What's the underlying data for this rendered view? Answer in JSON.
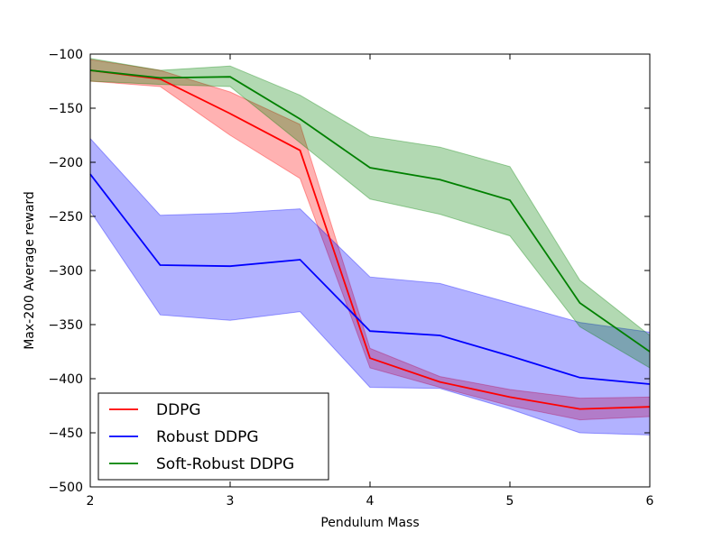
{
  "chart_data": {
    "type": "line",
    "title": "",
    "xlabel": "Pendulum Mass",
    "ylabel": "Max-200 Average reward",
    "xlim": [
      2,
      6
    ],
    "ylim": [
      -500,
      -100
    ],
    "xticks": [
      2,
      3,
      4,
      5,
      6
    ],
    "yticks": [
      -500,
      -450,
      -400,
      -350,
      -300,
      -250,
      -200,
      -150,
      -100
    ],
    "grid": false,
    "legend_position": "lower-left",
    "x": [
      2,
      2.5,
      3,
      3.5,
      4,
      4.5,
      5,
      5.5,
      6
    ],
    "series": [
      {
        "name": "DDPG",
        "color": "#ff0000",
        "values": [
          -115,
          -123,
          -155,
          -189,
          -381,
          -403,
          -417,
          -428,
          -426
        ],
        "lower": [
          -125,
          -130,
          -175,
          -215,
          -390,
          -408,
          -425,
          -438,
          -435
        ],
        "upper": [
          -105,
          -115,
          -135,
          -165,
          -372,
          -398,
          -410,
          -418,
          -417
        ]
      },
      {
        "name": "Robust DDPG",
        "color": "#0000ff",
        "values": [
          -211,
          -295,
          -296,
          -290,
          -356,
          -360,
          -379,
          -399,
          -405
        ],
        "lower": [
          -245,
          -341,
          -346,
          -338,
          -408,
          -409,
          -428,
          -450,
          -452
        ],
        "upper": [
          -178,
          -249,
          -247,
          -243,
          -306,
          -312,
          -330,
          -348,
          -357
        ]
      },
      {
        "name": "Soft-Robust DDPG",
        "color": "#008000",
        "values": [
          -115,
          -122,
          -121,
          -160,
          -205,
          -216,
          -235,
          -330,
          -375
        ],
        "lower": [
          -125,
          -128,
          -130,
          -182,
          -234,
          -248,
          -268,
          -352,
          -390
        ],
        "upper": [
          -104,
          -115,
          -111,
          -138,
          -176,
          -186,
          -204,
          -309,
          -360
        ]
      }
    ]
  }
}
